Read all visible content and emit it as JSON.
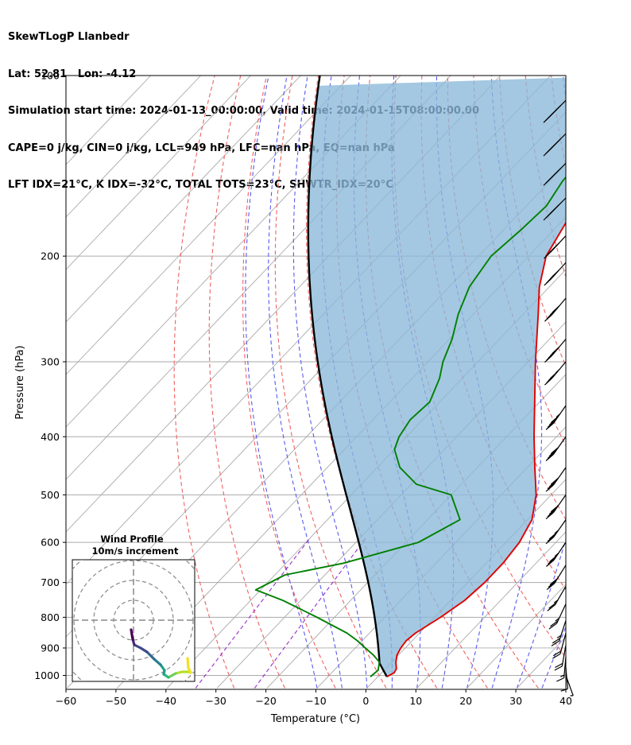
{
  "header": {
    "line1": "SkewTLogP Llanbedr",
    "line2": "Lat: 52.81   Lon: -4.12",
    "line3": "Simulation start time: 2024-01-13_00:00:00, Valid time: 2024-01-15T08:00:00.00",
    "line4": "CAPE=0 j/kg, CIN=0 j/kg, LCL=949 hPa, LFC=nan hPa, EQ=nan hPa",
    "line5": "LFT IDX=21°C, K IDX=-32°C, TOTAL TOTS=23°C, SHWTR_IDX=20°C"
  },
  "chart_data": {
    "type": "line",
    "title": "SkewTLogP Llanbedr",
    "xlabel": "Temperature (°C)",
    "ylabel": "Pressure (hPa)",
    "xlim": [
      -60,
      40
    ],
    "ylim": [
      1050,
      100
    ],
    "x_ticks": [
      -60,
      -50,
      -40,
      -30,
      -20,
      -10,
      0,
      10,
      20,
      30,
      40
    ],
    "x_tick_labels": [
      "−60",
      "−50",
      "−40",
      "−30",
      "−20",
      "−10",
      "0",
      "10",
      "20",
      "30",
      "40"
    ],
    "y_ticks": [
      100,
      200,
      300,
      400,
      500,
      600,
      700,
      800,
      900,
      1000
    ],
    "y_tick_labels": [
      "100",
      "200",
      "300",
      "400",
      "500",
      "600",
      "700",
      "800",
      "900",
      "1000"
    ],
    "y_scale": "log",
    "grid": true,
    "colors": {
      "temperature": "#e00000",
      "dewpoint": "#008000",
      "parcel": "#000000",
      "cape_fill": "#8ab8d8",
      "dry_adiabat": "#f06060",
      "moist_adiabat": "#5a5af0",
      "mixing_ratio": "#9a30c8",
      "isotherm": "#aaaaaa"
    },
    "series": [
      {
        "key": "temperature",
        "pressure": [
          1005,
          990,
          975,
          950,
          925,
          900,
          875,
          850,
          800,
          750,
          700,
          650,
          600,
          550,
          500,
          450,
          400,
          350,
          300,
          250,
          225,
          200,
          175,
          150,
          125,
          110,
          100
        ],
        "temperature": [
          1.8,
          2.5,
          2.2,
          0.8,
          -0.3,
          -0.9,
          -1.2,
          -0.8,
          1.2,
          2.8,
          3.4,
          3.4,
          2.7,
          0.9,
          -3.0,
          -8.5,
          -14.5,
          -21.0,
          -28.5,
          -37.0,
          -42.0,
          -46.5,
          -49.0,
          -52.0,
          -57.0,
          -61.0,
          -64.0
        ]
      },
      {
        "key": "dewpoint",
        "pressure": [
          1005,
          980,
          950,
          925,
          900,
          875,
          850,
          800,
          750,
          720,
          680,
          650,
          600,
          550,
          500,
          480,
          450,
          420,
          400,
          375,
          350,
          320,
          300,
          275,
          250,
          225,
          200,
          180,
          165,
          150,
          125,
          110,
          100
        ],
        "temperature": [
          -1.5,
          -1.2,
          -2.5,
          -5.0,
          -8.0,
          -11.0,
          -14.5,
          -23.5,
          -33.5,
          -41.0,
          -38.0,
          -28.5,
          -17.5,
          -13.5,
          -20.0,
          -29.0,
          -35.5,
          -40.0,
          -41.5,
          -42.5,
          -42.0,
          -44.5,
          -47.0,
          -49.5,
          -53.0,
          -56.0,
          -57.5,
          -56.5,
          -56.0,
          -57.5,
          -58.5,
          -59.5,
          -62.0
        ]
      }
    ],
    "inset": {
      "title": "Wind Profile",
      "subtitle": "10m/s increment"
    }
  }
}
